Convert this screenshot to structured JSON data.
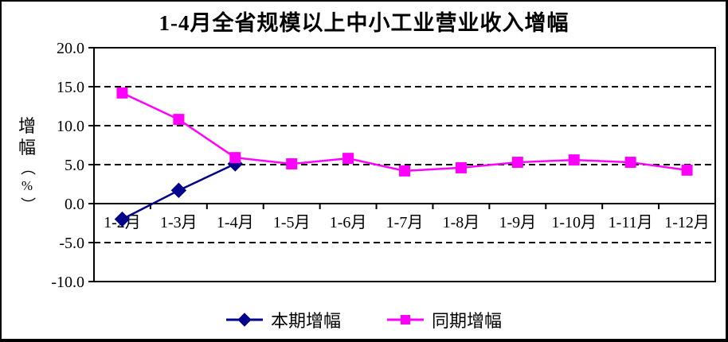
{
  "page": {
    "background": "#ffffff",
    "border_color": "#000000"
  },
  "chart_data": {
    "type": "line",
    "title": "1-4月全省规模以上中小工业营业收入增幅",
    "ylabel": "增幅（%）",
    "categories": [
      "1-2月",
      "1-3月",
      "1-4月",
      "1-5月",
      "1-6月",
      "1-7月",
      "1-8月",
      "1-9月",
      "1-10月",
      "1-11月",
      "1-12月"
    ],
    "series": [
      {
        "name": "本期增幅",
        "color": "#00008B",
        "marker": "diamond",
        "values": [
          -2.0,
          1.7,
          5.1,
          null,
          null,
          null,
          null,
          null,
          null,
          null,
          null
        ]
      },
      {
        "name": "同期增幅",
        "color": "#FF00FF",
        "marker": "square",
        "values": [
          14.2,
          10.8,
          5.9,
          5.1,
          5.8,
          4.2,
          4.6,
          5.3,
          5.6,
          5.3,
          4.3
        ]
      }
    ],
    "ylim": [
      -10.0,
      20.0
    ],
    "ytick_step": 5,
    "ytick_labels": [
      "20.0",
      "15.0",
      "10.0",
      "5.0",
      "0.0",
      "-5.0",
      "-10.0"
    ],
    "grid": "dashed-horizontal",
    "gridline_color": "#000000",
    "zero_axis": true,
    "legend_position": "bottom"
  }
}
